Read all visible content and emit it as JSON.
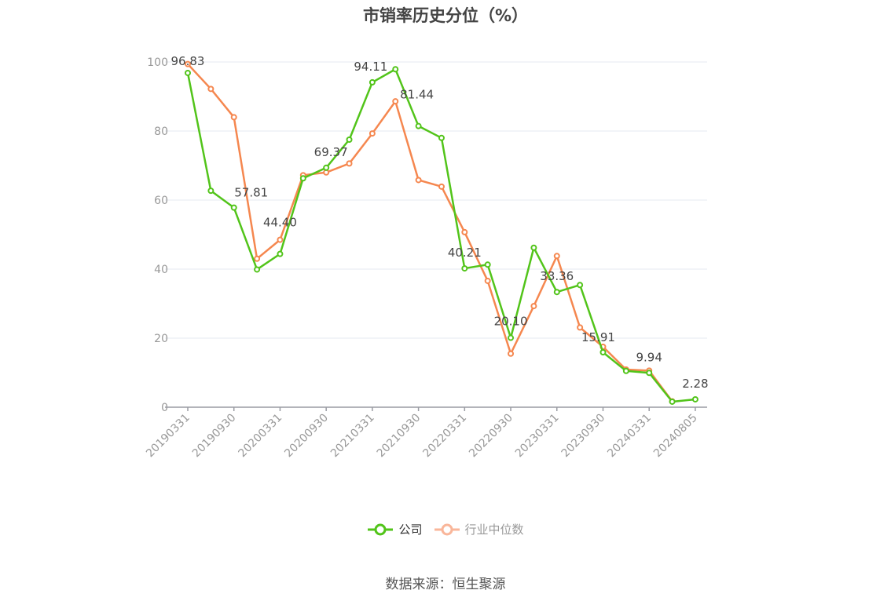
{
  "title": "市销率历史分位（%）",
  "legend": {
    "company": "公司",
    "industry": "行业中位数"
  },
  "source": "数据来源：恒生聚源",
  "colors": {
    "company": "#52c41a",
    "industry": "#f5874f",
    "industry_legend": "#f9b69a",
    "grid": "#e6e9f2",
    "axis": "#9a9ca3"
  },
  "chart_data": {
    "type": "line",
    "title": "市销率历史分位（%）",
    "xlabel": "",
    "ylabel": "",
    "ylim": [
      0,
      100
    ],
    "yticks": [
      0,
      20,
      40,
      60,
      80,
      100
    ],
    "grid": true,
    "legend_position": "bottom",
    "xtick_labels": [
      "20190331",
      "20190930",
      "20200331",
      "20200930",
      "20210331",
      "20210930",
      "20220331",
      "20220930",
      "20230331",
      "20230930",
      "20240331",
      "20240805"
    ],
    "x": [
      "20190331",
      "20190630",
      "20190930",
      "20191231",
      "20200331",
      "20200630",
      "20200930",
      "20201231",
      "20210331",
      "20210630",
      "20210930",
      "20211231",
      "20220331",
      "20220630",
      "20220930",
      "20221231",
      "20230331",
      "20230630",
      "20230930",
      "20231231",
      "20240331",
      "20240630",
      "20240805"
    ],
    "series": [
      {
        "name": "公司",
        "values": [
          96.83,
          62.7,
          57.81,
          39.9,
          44.4,
          66.3,
          69.37,
          77.5,
          94.11,
          97.9,
          81.44,
          78.0,
          40.21,
          41.3,
          20.1,
          46.2,
          33.36,
          35.4,
          15.91,
          10.5,
          9.94,
          1.6,
          2.28
        ],
        "labels": {
          "0": "96.83",
          "2": "57.81",
          "4": "44.40",
          "6": "69.37",
          "8": "94.11",
          "10": "81.44",
          "12": "40.21",
          "14": "20.10",
          "16": "33.36",
          "18": "15.91",
          "20": "9.94",
          "22": "2.28"
        }
      },
      {
        "name": "行业中位数",
        "values": [
          99.4,
          92.2,
          84.0,
          43.0,
          48.5,
          67.2,
          68.0,
          70.6,
          79.3,
          88.6,
          65.8,
          63.9,
          50.7,
          36.6,
          15.5,
          29.3,
          43.8,
          23.1,
          17.5,
          10.9,
          10.6,
          1.7,
          null
        ]
      }
    ]
  }
}
